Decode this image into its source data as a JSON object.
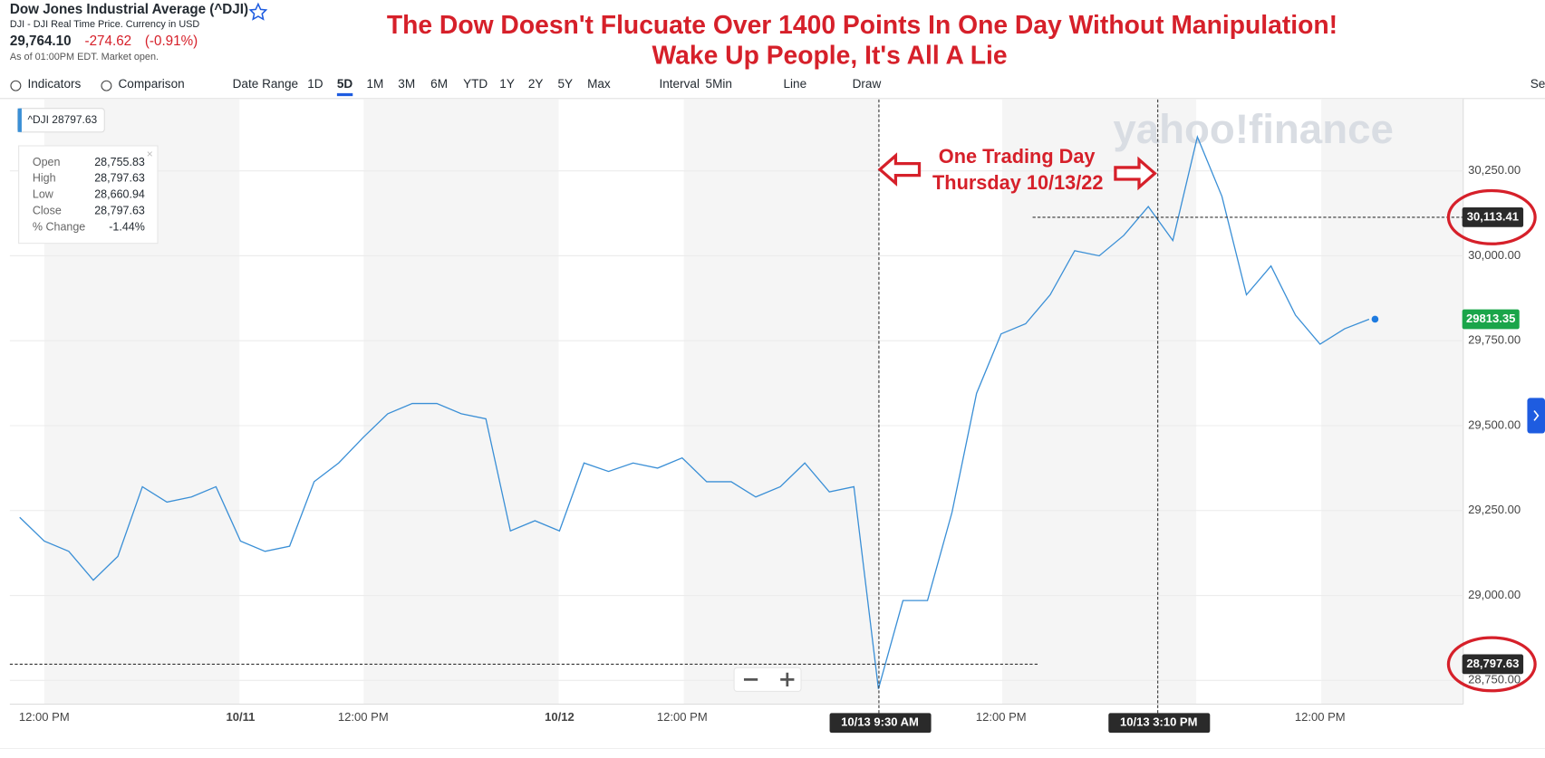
{
  "header": {
    "name": "Dow Jones Industrial Average (^DJI)",
    "source": "DJI - DJI Real Time Price. Currency in USD",
    "price": "29,764.10",
    "change": "-274.62",
    "change_pct": "(-0.91%)",
    "as_of": "As of 01:00PM EDT. Market open."
  },
  "banner": [
    "The Dow Doesn't Flucuate Over 1400 Points In One Day Without Manipulation!",
    "Wake Up People, It's All A Lie"
  ],
  "toolbar": [
    "Indicators",
    "Comparison",
    "Date Range",
    "1D",
    "5D",
    "1M",
    "3M",
    "6M",
    "YTD",
    "1Y",
    "2Y",
    "5Y",
    "Max",
    "Interval",
    "5Min",
    "Line",
    "Draw",
    "Set"
  ],
  "annotation": [
    "One Trading Day",
    "Thursday 10/13/22"
  ],
  "watermark": "yahoo!finance",
  "legend_tag": "^DJI 28797.63",
  "tooltip": {
    "rows": [
      [
        "Open",
        "28,755.83"
      ],
      [
        "High",
        "28,797.63"
      ],
      [
        "Low",
        "28,660.94"
      ],
      [
        "Close",
        "28,797.63"
      ],
      [
        "% Change",
        "-1.44%"
      ]
    ]
  },
  "crosshair_x_labels": [
    "10/13 9:30 AM",
    "10/13 3:10 PM"
  ],
  "chart_data": {
    "type": "line",
    "categories": [
      null,
      "12:00 PM",
      null,
      null,
      null,
      null,
      null,
      null,
      null,
      "10/11",
      null,
      null,
      null,
      null,
      "12:00 PM",
      null,
      null,
      null,
      null,
      null,
      null,
      null,
      "10/12",
      null,
      null,
      null,
      null,
      "12:00 PM",
      null,
      null,
      null,
      null,
      null,
      null,
      null,
      null,
      null,
      null,
      null,
      null,
      "12:00 PM",
      null,
      null,
      null,
      null,
      null,
      null,
      null,
      null,
      null,
      null,
      null,
      null,
      "12:00 PM",
      null,
      null
    ],
    "series": [
      {
        "name": "^DJI",
        "color": "#3a8fd6",
        "values": [
          29230,
          29160,
          29130,
          29045,
          29115,
          29320,
          29275,
          29290,
          29320,
          29160,
          29130,
          29145,
          29335,
          29390,
          29465,
          29535,
          29565,
          29565,
          29535,
          29520,
          29190,
          29220,
          29190,
          29390,
          29365,
          29390,
          29375,
          29405,
          29335,
          29335,
          29290,
          29320,
          29390,
          29305,
          29320,
          28725,
          28985,
          28985,
          29245,
          29595,
          29770,
          29800,
          29885,
          30015,
          30000,
          30060,
          30145,
          30045,
          30350,
          30175,
          29885,
          29970,
          29825,
          29740,
          29785,
          29813.35
        ]
      }
    ],
    "ylim": [
      28680,
      30460
    ],
    "yticks": [
      {
        "value": 28750,
        "label": "28,750.00"
      },
      {
        "value": 29000,
        "label": "29,000.00"
      },
      {
        "value": 29250,
        "label": "29,250.00"
      },
      {
        "value": 29500,
        "label": "29,500.00"
      },
      {
        "value": 29750,
        "label": "29,750.00"
      },
      {
        "value": 30000,
        "label": "30,000.00"
      },
      {
        "value": 30250,
        "label": "30,250.00"
      }
    ],
    "grid": true,
    "crosshair_values": [
      {
        "value": 30113.41,
        "label": "30,113.41"
      },
      {
        "value": 28797.63,
        "label": "28,797.63"
      }
    ],
    "last_value": {
      "value": 29813.35,
      "label": "29813.35"
    }
  }
}
